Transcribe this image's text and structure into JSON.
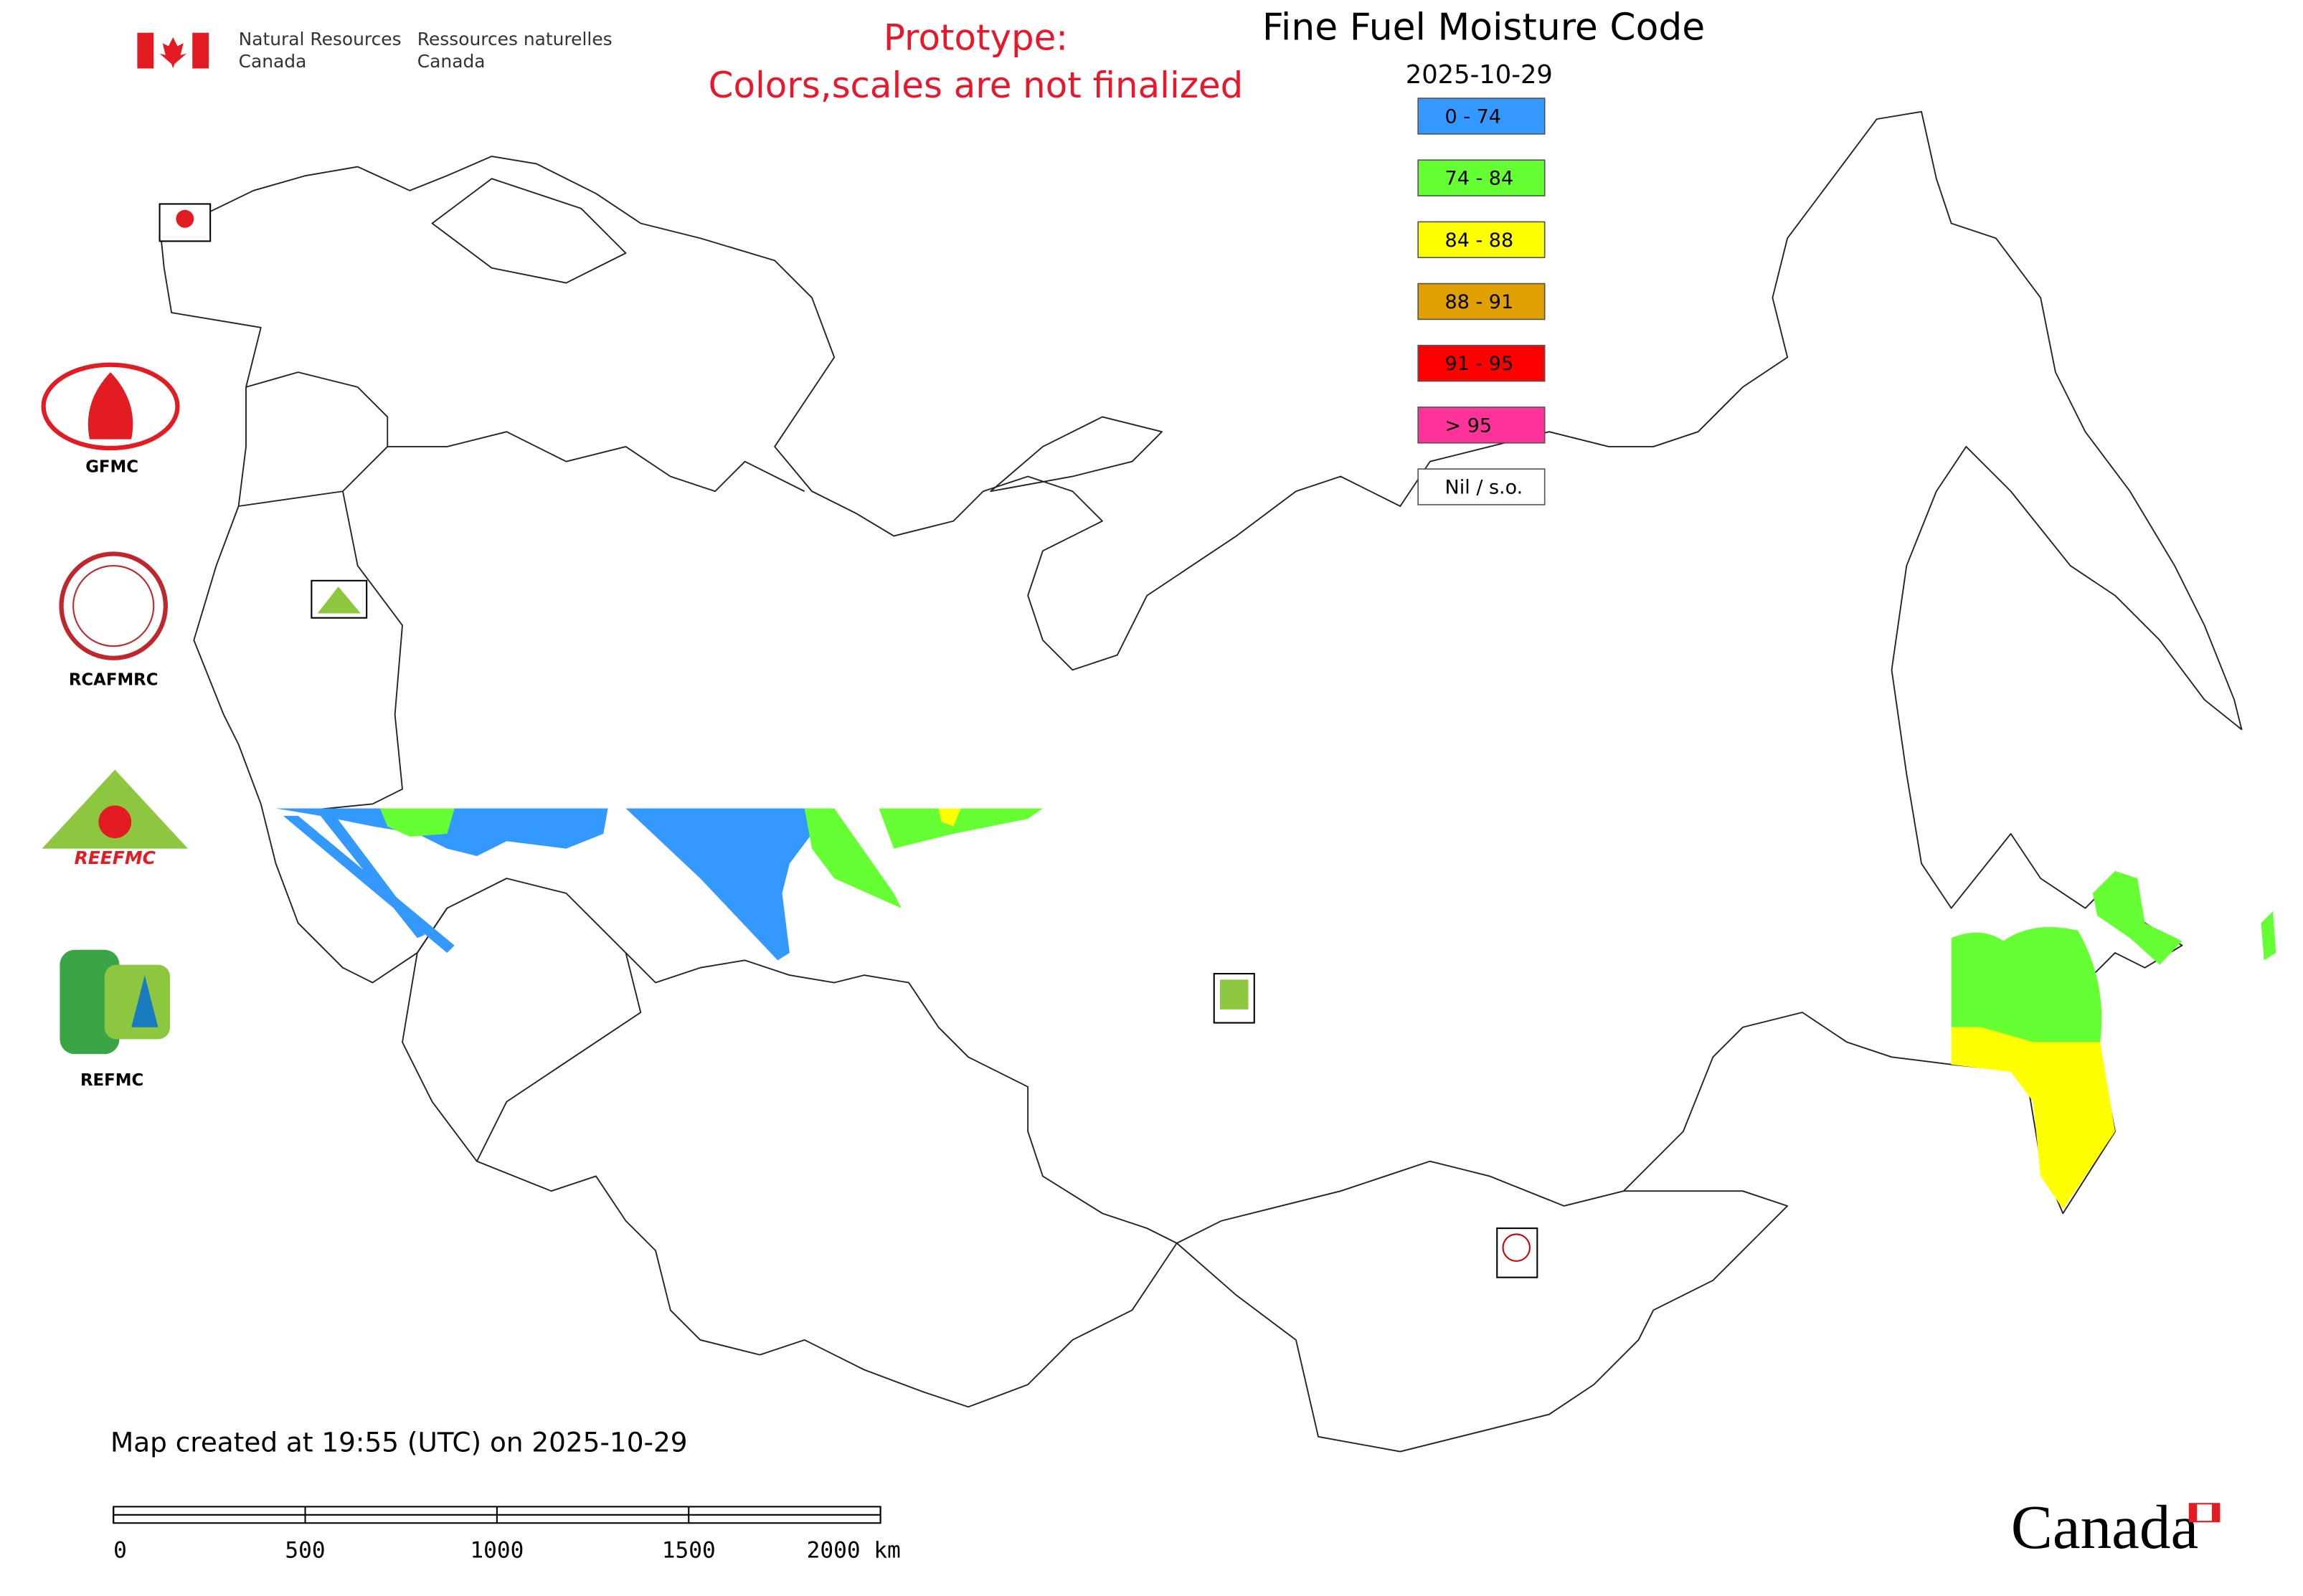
{
  "header": {
    "nrcan_en": [
      "Natural Resources",
      "Canada"
    ],
    "nrcan_fr": [
      "Ressources naturelles",
      "Canada"
    ]
  },
  "notice": [
    "Prototype:",
    "Colors,scales are not finalized"
  ],
  "map": {
    "title": "Fine Fuel Moisture Code",
    "date": "2025-10-29",
    "legend": [
      {
        "label": "0 - 74",
        "color": "#3399ff"
      },
      {
        "label": "74 - 84",
        "color": "#66ff33"
      },
      {
        "label": "84 - 88",
        "color": "#ffff00"
      },
      {
        "label": "88 - 91",
        "color": "#e0a000"
      },
      {
        "label": "91 - 95",
        "color": "#ff0000"
      },
      {
        "label": "> 95",
        "color": "#ff3399"
      },
      {
        "label": "Nil / s.o.",
        "color": "#ffffff"
      }
    ],
    "logo_labels": [
      "GFMC",
      "RCAFMRC",
      "REFMC"
    ],
    "reefmc_logo_text": "REEFMC",
    "footer": "Map created at 19:55 (UTC) on 2025-10-29",
    "scale_bar": {
      "lim": [
        0,
        2000
      ],
      "ticks": [
        0,
        500,
        1000,
        1500,
        {
          "value": 2000,
          "label": "2000 km"
        }
      ]
    },
    "wordmark": "Canada"
  }
}
